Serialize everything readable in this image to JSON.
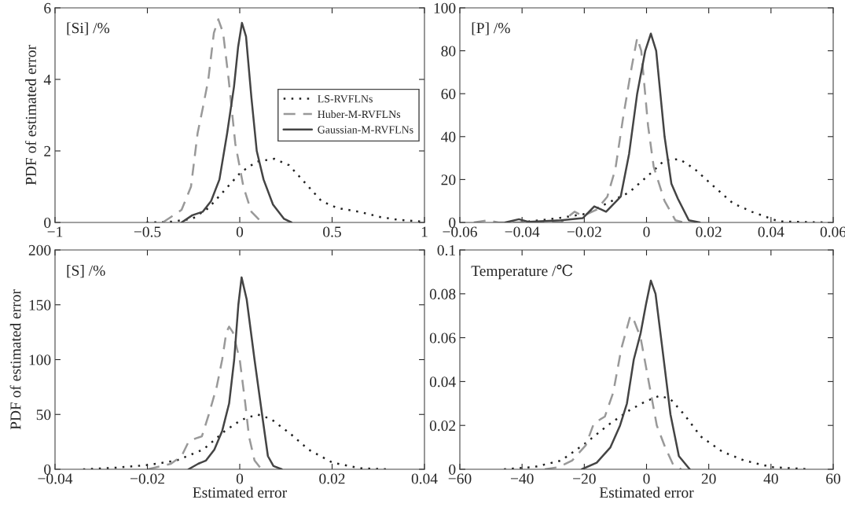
{
  "chart_data": [
    {
      "type": "line",
      "ylabel": "PDF of estimated error",
      "annotations": [
        "[Si] /%"
      ],
      "legend": "right",
      "grid": false,
      "xlim": [
        -1,
        1
      ],
      "xticks": [
        {
          "value": -1,
          "label": "−1"
        },
        {
          "value": -0.5,
          "label": "−0.5"
        },
        0,
        0.5,
        1
      ],
      "ylim": [
        0,
        6
      ],
      "yticks": [
        0,
        2,
        4,
        6
      ],
      "series": [
        {
          "name": "LS-RVFLNs",
          "color": "#222222",
          "line_style": "dotted",
          "x": [
            -0.505,
            -0.374,
            -0.257,
            -0.17,
            -0.082,
            0.005,
            0.092,
            0.187,
            0.267,
            0.355,
            0.442,
            0.53,
            0.646,
            0.763,
            0.864,
            0.996
          ],
          "values": [
            0,
            0.02,
            0.1,
            0.4,
            0.9,
            1.4,
            1.7,
            1.78,
            1.6,
            1.1,
            0.6,
            0.4,
            0.3,
            0.15,
            0.07,
            0.02
          ]
        },
        {
          "name": "Huber-M-RVFLNs",
          "color": "#999999",
          "line_style": "dashed",
          "x": [
            -0.417,
            -0.315,
            -0.264,
            -0.228,
            -0.2,
            -0.17,
            -0.14,
            -0.116,
            -0.09,
            -0.06,
            -0.024,
            0.02,
            0.063,
            0.12
          ],
          "values": [
            0,
            0.35,
            1.0,
            2.5,
            3.2,
            4.0,
            5.3,
            5.68,
            5.3,
            4.0,
            2.2,
            1.0,
            0.3,
            0
          ]
        },
        {
          "name": "Gaussian-M-RVFLNs",
          "color": "#444444",
          "line_style": "solid",
          "x": [
            -0.315,
            -0.257,
            -0.2,
            -0.155,
            -0.11,
            -0.068,
            -0.031,
            -0.009,
            0.012,
            0.034,
            0.063,
            0.092,
            0.129,
            0.18,
            0.24,
            0.28
          ],
          "values": [
            0,
            0.2,
            0.3,
            0.6,
            1.2,
            2.5,
            3.8,
            4.9,
            5.58,
            5.2,
            3.5,
            2.0,
            1.2,
            0.5,
            0.1,
            0
          ]
        }
      ]
    },
    {
      "type": "line",
      "annotations": [
        "[P] /%"
      ],
      "grid": false,
      "xlim": [
        -0.06,
        0.06
      ],
      "xticks": [
        {
          "value": -0.06,
          "label": "−0.06"
        },
        {
          "value": -0.04,
          "label": "−0.04"
        },
        {
          "value": -0.02,
          "label": "−0.02"
        },
        0,
        0.02,
        0.04,
        0.06
      ],
      "ylim": [
        0,
        100
      ],
      "yticks": [
        0,
        20,
        40,
        60,
        80,
        100
      ],
      "series": [
        {
          "color": "#222222",
          "line_style": "dotted",
          "x": [
            -0.0406,
            -0.0283,
            -0.0196,
            -0.0126,
            -0.0056,
            0.0014,
            0.0058,
            0.0106,
            0.0154,
            0.0207,
            0.0277,
            0.0338,
            0.0425,
            0.0574
          ],
          "values": [
            0,
            2,
            4,
            9,
            14,
            23,
            29,
            29.5,
            25,
            18,
            9,
            5,
            0.5,
            0
          ]
        },
        {
          "color": "#999999",
          "line_style": "dashed",
          "x": [
            -0.0555,
            -0.051,
            -0.0476,
            -0.0275,
            -0.0231,
            -0.0205,
            -0.016,
            -0.0126,
            -0.01,
            -0.0074,
            -0.0047,
            -0.003,
            -0.0017,
            0.0005,
            0.0023,
            0.0058,
            0.0093,
            0.012
          ],
          "values": [
            0,
            1,
            0,
            0,
            5,
            3,
            6,
            12,
            25,
            50,
            73,
            86,
            80,
            45,
            26,
            10,
            1,
            0
          ]
        },
        {
          "color": "#444444",
          "line_style": "solid",
          "x": [
            -0.0454,
            -0.041,
            -0.038,
            -0.0275,
            -0.0205,
            -0.0168,
            -0.013,
            -0.0083,
            -0.0056,
            -0.003,
            -0.0004,
            0.0014,
            0.0031,
            0.0058,
            0.008,
            0.0101,
            0.0136,
            0.0171
          ],
          "values": [
            0,
            1.5,
            0.3,
            1,
            2,
            7.5,
            5,
            12,
            32,
            60,
            80,
            88,
            80,
            40,
            18,
            11,
            1,
            0
          ]
        }
      ]
    },
    {
      "type": "line",
      "ylabel": "PDF of estimated error",
      "xlabel": "Estimated error",
      "annotations": [
        "[S] /%"
      ],
      "grid": false,
      "xlim": [
        -0.04,
        0.04
      ],
      "xticks": [
        {
          "value": -0.04,
          "label": "−0.04"
        },
        {
          "value": -0.02,
          "label": "−0.02"
        },
        0,
        0.02,
        0.04
      ],
      "ylim": [
        0,
        200
      ],
      "yticks": [
        0,
        50,
        100,
        150,
        200
      ],
      "series": [
        {
          "color": "#222222",
          "line_style": "dotted",
          "x": [
            -0.0339,
            -0.0266,
            -0.0196,
            -0.0137,
            -0.0079,
            -0.0032,
            0.0003,
            0.0038,
            0.0067,
            0.0108,
            0.0149,
            0.0201,
            0.026,
            0.0318
          ],
          "values": [
            0,
            1.5,
            4,
            8,
            18,
            35,
            45,
            50,
            46,
            33,
            18,
            6,
            1,
            0
          ]
        },
        {
          "color": "#999999",
          "line_style": "dashed",
          "x": [
            -0.0199,
            -0.0149,
            -0.0126,
            -0.0111,
            -0.0096,
            -0.0082,
            -0.0067,
            -0.005,
            -0.0038,
            -0.0029,
            -0.0023,
            -0.0015,
            0,
            0.0012,
            0.002,
            0.0032,
            0.0047
          ],
          "values": [
            0,
            5,
            12,
            25,
            28,
            30,
            50,
            75,
            100,
            125,
            130,
            125,
            100,
            60,
            30,
            8,
            0
          ]
        },
        {
          "color": "#444444",
          "line_style": "solid",
          "x": [
            -0.0111,
            -0.009,
            -0.0073,
            -0.0055,
            -0.0038,
            -0.0023,
            -0.0012,
            -0.0003,
            0.0004,
            0.0015,
            0.0032,
            0.005,
            0.0061,
            0.0073,
            0.0091
          ],
          "values": [
            0,
            5,
            8,
            18,
            35,
            60,
            100,
            150,
            175,
            155,
            100,
            45,
            12,
            3,
            0
          ]
        }
      ]
    },
    {
      "type": "line",
      "xlabel": "Estimated error",
      "annotations": [
        "Temperature /℃"
      ],
      "grid": false,
      "xlim": [
        -60,
        60
      ],
      "xticks": [
        {
          "value": -60,
          "label": "−60"
        },
        {
          "value": -40,
          "label": "−40"
        },
        {
          "value": -20,
          "label": "−20"
        },
        0,
        20,
        40,
        60
      ],
      "ylim": [
        0,
        0.1
      ],
      "yticks": [
        0,
        0.02,
        0.04,
        0.06,
        0.08,
        0.1
      ],
      "series": [
        {
          "color": "#222222",
          "line_style": "dotted",
          "x": [
            -45.8,
            -36.2,
            -27.4,
            -19.5,
            -12.5,
            -5.4,
            -0.2,
            4.2,
            7.7,
            12.1,
            17.4,
            24.4,
            31.4,
            40.2,
            52.5
          ],
          "values": [
            0,
            0.001,
            0.004,
            0.012,
            0.02,
            0.027,
            0.031,
            0.0335,
            0.032,
            0.025,
            0.015,
            0.008,
            0.004,
            0.001,
            0
          ]
        },
        {
          "color": "#999999",
          "line_style": "dashed",
          "x": [
            -32.7,
            -28.3,
            -23.9,
            -19.5,
            -16.9,
            -13.4,
            -10.7,
            -8.1,
            -5.4,
            -4.6,
            -1.9,
            0.7,
            3.3,
            6.0,
            8.6,
            11.2
          ],
          "values": [
            0,
            0.001,
            0.004,
            0.011,
            0.021,
            0.024,
            0.035,
            0.055,
            0.069,
            0.07,
            0.06,
            0.04,
            0.02,
            0.01,
            0.002,
            0
          ]
        },
        {
          "color": "#444444",
          "line_style": "solid",
          "x": [
            -20.8,
            -16,
            -11.6,
            -8.5,
            -6.3,
            -4.1,
            -1.9,
            -0.2,
            1.4,
            2.9,
            5.1,
            7.7,
            10.4,
            13.9
          ],
          "values": [
            0,
            0.003,
            0.01,
            0.02,
            0.03,
            0.05,
            0.062,
            0.075,
            0.086,
            0.08,
            0.055,
            0.025,
            0.006,
            0
          ]
        }
      ]
    }
  ]
}
